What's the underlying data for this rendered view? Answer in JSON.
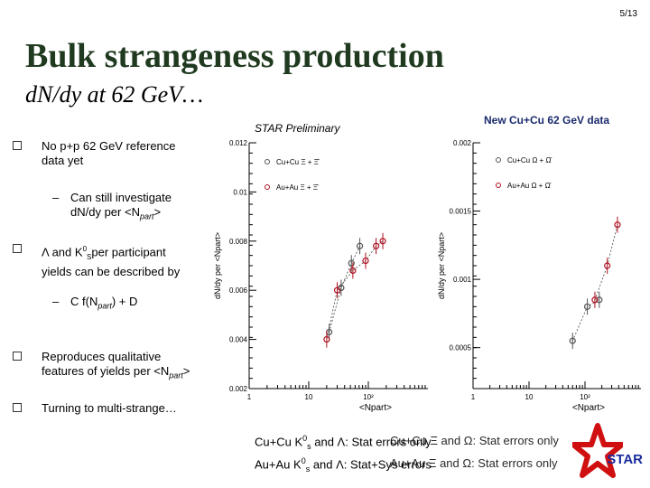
{
  "page_number": "5/13",
  "title": "Bulk strangeness production",
  "subtitle": "d N/dy at 62 Ge V…",
  "bullets": [
    {
      "text": "No p+p 62 GeV reference data yet",
      "line1": "No p+p 62 GeV reference",
      "line2": "data yet"
    },
    {
      "text": "Can still investigate dN/dy per <Npart>",
      "line1": "Can still investigate",
      "line2": "dN/dy per <Npart>"
    },
    {
      "text": "Λ and K0s per participant yields can be described by",
      "line1": "Λ and K0sper participant",
      "line2": "yields can be described by"
    },
    {
      "text": "C f(Npart) + D"
    },
    {
      "text": "Reproduces qualitative features of yields per <Npart>",
      "line1": "Reproduces qualitative",
      "line2": "features of yields per <Npart>"
    },
    {
      "text": "Turning to multi-strange…"
    }
  ],
  "labels": {
    "star_preliminary": "STAR Preliminary",
    "new_data": "New Cu+Cu 62 GeV data",
    "note1": "Cu+Cu K0s and Λ: Stat errors only",
    "note1_overlay": "Cu+Cu Ξ and Ω: Stat errors only",
    "note2": "Au+Au K0s and Λ: Stat+Sys errors",
    "note2_overlay": "Au+Au Ξ and Ω: Stat errors only",
    "star_logo": "STAR"
  },
  "chart_data": [
    {
      "type": "scatter",
      "title": "",
      "ylabel": "dN/dy per <Npart>",
      "xlabel": "<Npart>",
      "x_scale": "log",
      "xlim": [
        1,
        1000
      ],
      "y_ticks": [
        "0.002",
        "0.004",
        "0.006",
        "0.008",
        "0.01",
        "0.012"
      ],
      "x_ticks": [
        "1",
        "10",
        "10²"
      ],
      "legend": [
        "Cu+Cu Ξ + Ξ̄",
        "Au+Au Ξ + Ξ̄"
      ],
      "series": [
        {
          "name": "Cu+Cu Ξ + Ξ̄",
          "x": [
            22,
            35,
            52,
            72
          ],
          "y": [
            0.0043,
            0.0061,
            0.0071,
            0.0078
          ]
        },
        {
          "name": "Au+Au Ξ + Ξ̄",
          "x": [
            20,
            30,
            55,
            90,
            135,
            175
          ],
          "y": [
            0.004,
            0.006,
            0.0068,
            0.0072,
            0.0078,
            0.008
          ]
        }
      ]
    },
    {
      "type": "scatter",
      "title": "",
      "ylabel": "dN/dy per <Npart>",
      "xlabel": "<Npart>",
      "x_scale": "log",
      "xlim": [
        1,
        1000
      ],
      "y_ticks": [
        "0.0005",
        "0.001",
        "0.0015",
        "0.002"
      ],
      "x_ticks": [
        "1",
        "10",
        "10²"
      ],
      "legend": [
        "Cu+Cu Ω + Ω̄",
        "Au+Au Ω + Ω̄"
      ],
      "series": [
        {
          "name": "Cu+Cu Ω + Ω̄",
          "x": [
            60,
            110,
            180
          ],
          "y": [
            0.00055,
            0.0008,
            0.00085
          ]
        },
        {
          "name": "Au+Au Ω + Ω̄",
          "x": [
            150,
            250,
            380
          ],
          "y": [
            0.00085,
            0.0011,
            0.0014
          ]
        }
      ]
    }
  ]
}
